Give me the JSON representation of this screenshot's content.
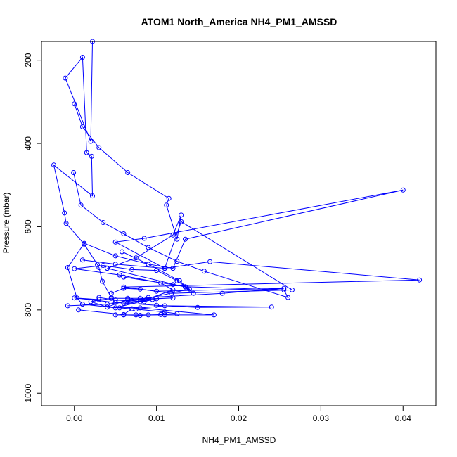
{
  "chart_data": {
    "type": "line",
    "title": "ATOM1 North_America NH4_PM1_AMSSD",
    "xlabel": "NH4_PM1_AMSSD",
    "ylabel": "Pressure (mbar)",
    "xlim": [
      -0.004,
      0.044
    ],
    "ylim": [
      1030,
      155
    ],
    "y_reversed": true,
    "x_ticks": [
      0.0,
      0.01,
      0.02,
      0.03,
      0.04
    ],
    "x_tick_labels": [
      "0.00",
      "0.01",
      "0.02",
      "0.03",
      "0.04"
    ],
    "y_ticks": [
      200,
      400,
      600,
      800,
      1000
    ],
    "y_tick_labels": [
      "200",
      "400",
      "600",
      "800",
      "1000"
    ],
    "grid": false,
    "marker": "open-circle",
    "color": "#0000ff",
    "series": [
      {
        "x": [
          0.0022,
          0.002,
          -0.0011,
          0.001,
          0.0015,
          0.0021,
          0.0022,
          -0.0025,
          -0.0012,
          -0.001,
          0.0012,
          0.0028,
          0.003,
          0.0034,
          0.0045
        ],
        "y": [
          155,
          395,
          243,
          193,
          422,
          431,
          526,
          452,
          567,
          592,
          642,
          691,
          698,
          731,
          770
        ]
      },
      {
        "x": [
          0.004,
          0.0135,
          0.0145,
          0.0128,
          0.009,
          0.005,
          0.0012,
          -0.0008,
          0.0003,
          0.001,
          0.005,
          0.008,
          0.012,
          0.0105,
          0.0055,
          0.0,
          0.0035,
          0.007,
          0.01,
          0.0125,
          0.014,
          0.0085,
          0.004,
          -0.0008
        ],
        "y": [
          700,
          745,
          760,
          730,
          690,
          670,
          640,
          698,
          771,
          786,
          795,
          780,
          752,
          735,
          716,
          701,
          693,
          703,
          705,
          730,
          750,
          774,
          786,
          790
        ]
      },
      {
        "x": [
          0.0,
          0.001,
          0.003,
          0.0065,
          0.0115,
          0.0112,
          0.0125,
          0.013,
          0.012,
          0.0075,
          0.004
        ],
        "y": [
          305,
          360,
          410,
          470,
          532,
          548,
          630,
          572,
          620,
          675,
          700
        ]
      },
      {
        "x": [
          -0.0001,
          0.0008,
          0.0035,
          0.006,
          0.009,
          0.0125,
          0.0158,
          0.026,
          0.0255,
          0.0135,
          0.012,
          0.006
        ],
        "y": [
          470,
          548,
          590,
          617,
          650,
          683,
          707,
          770,
          752,
          744,
          739,
          721
        ]
      },
      {
        "x": [
          0.0058,
          0.009,
          0.012,
          0.0135,
          0.04,
          0.0085,
          0.005,
          0.011,
          0.013,
          0.0265,
          0.0118,
          0.008,
          0.006,
          0.0045
        ],
        "y": [
          660,
          690,
          700,
          630,
          512,
          628,
          637,
          700,
          588,
          752,
          760,
          750,
          748,
          760
        ]
      },
      {
        "x": [
          0.001,
          0.005,
          0.011,
          0.0165,
          0.042,
          0.006,
          0.01,
          0.0255,
          0.018,
          0.009,
          0.007,
          0.003,
          0.0,
          0.005,
          0.01,
          0.015,
          0.024,
          0.011,
          0.007,
          0.006,
          0.0005
        ],
        "y": [
          680,
          690,
          700,
          684,
          728,
          745,
          755,
          748,
          760,
          770,
          778,
          775,
          771,
          782,
          789,
          794,
          793,
          790,
          797,
          811,
          800
        ]
      },
      {
        "x": [
          0.003,
          0.005,
          0.0085,
          0.01,
          0.012,
          0.0065,
          0.004,
          0.0055,
          0.0075,
          0.011,
          0.0125,
          0.0105,
          0.008,
          0.006
        ],
        "y": [
          770,
          776,
          780,
          773,
          771,
          775,
          793,
          795,
          798,
          805,
          809,
          811,
          813,
          812
        ]
      },
      {
        "x": [
          0.005,
          0.0075,
          0.009,
          0.011,
          0.017,
          0.008,
          0.004,
          0.002,
          0.0045,
          0.0065,
          0.008,
          0.0095,
          0.006
        ],
        "y": [
          812,
          812,
          812,
          812,
          812,
          795,
          793,
          780,
          772,
          772,
          772,
          775,
          784
        ]
      }
    ]
  }
}
